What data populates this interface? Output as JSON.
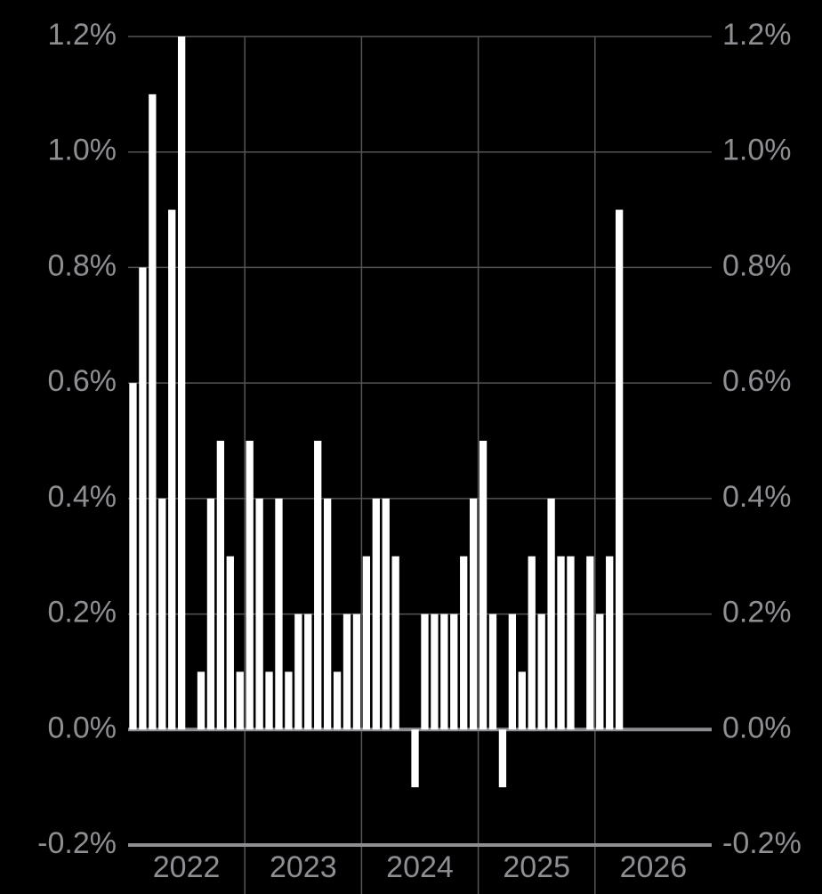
{
  "chart_data": {
    "type": "bar",
    "year_labels": [
      "2022",
      "2023",
      "2024",
      "2025",
      "2026"
    ],
    "months_per_year": 12,
    "values": [
      0.6,
      0.8,
      1.1,
      0.4,
      0.9,
      1.2,
      0,
      0.1,
      0.4,
      0.5,
      0.3,
      0.1,
      0.5,
      0.4,
      0.1,
      0.4,
      0.1,
      0.2,
      0.2,
      0.5,
      0.4,
      0.1,
      0.2,
      0.2,
      0.3,
      0.4,
      0.4,
      0.3,
      0,
      -0.1,
      0.2,
      0.2,
      0.2,
      0.2,
      0.3,
      0.4,
      0.5,
      0.2,
      -0.1,
      0.2,
      0.1,
      0.3,
      0.2,
      0.4,
      0.3,
      0.3,
      0,
      0.3,
      0.2,
      0.3,
      0.9,
      null,
      null,
      null,
      null,
      null,
      null,
      null,
      null,
      null
    ],
    "color": "#ffffff",
    "ylim": [
      -0.2,
      1.2
    ],
    "yticks": [
      {
        "value": -0.2,
        "label": "-0.2%"
      },
      {
        "value": 0,
        "label": "0.0%"
      },
      {
        "value": 0.2,
        "label": "0.2%"
      },
      {
        "value": 0.4,
        "label": "0.4%"
      },
      {
        "value": 0.6,
        "label": "0.6%"
      },
      {
        "value": 0.8,
        "label": "0.8%"
      },
      {
        "value": 1.0,
        "label": "1.0%"
      },
      {
        "value": 1.2,
        "label": "1.2%"
      }
    ],
    "grid": true
  }
}
